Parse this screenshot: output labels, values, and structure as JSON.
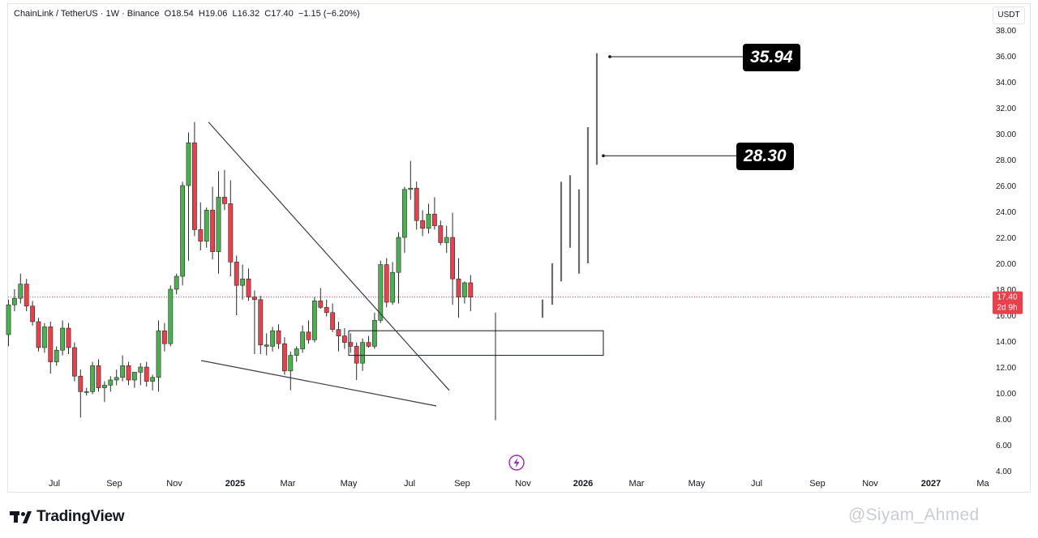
{
  "header": {
    "symbol": "ChainLink / TetherUS · 1W · Binance",
    "open_label": "O",
    "open": "18.54",
    "high_label": "H",
    "high": "19.06",
    "low_label": "L",
    "low": "16.32",
    "close_label": "C",
    "close": "17.40",
    "change": "−1.15 (−6.20%)"
  },
  "currency": "USDT",
  "price_tag": {
    "price": "17.40",
    "countdown": "2d 9h"
  },
  "targets": [
    {
      "value": "35.94"
    },
    {
      "value": "28.30"
    }
  ],
  "event_icon": "lightning-icon",
  "footer": {
    "brand": "TradingView",
    "watermark": "@Siyam_Ahmed"
  },
  "colors": {
    "up": "#4caf50",
    "down": "#e8414e",
    "price_line": "#e8414e",
    "text": "#131722",
    "pattern_lines": "#363a45"
  },
  "chart_data": {
    "type": "candlestick",
    "interval": "1W",
    "ylim": [
      4,
      38
    ],
    "y_ticks": [
      "4.00",
      "6.00",
      "8.00",
      "10.00",
      "12.00",
      "14.00",
      "16.00",
      "18.00",
      "20.00",
      "22.00",
      "24.00",
      "26.00",
      "28.00",
      "30.00",
      "32.00",
      "34.00",
      "36.00",
      "38.00"
    ],
    "x_ticks": [
      "Jul",
      "Sep",
      "Nov",
      "2025",
      "Mar",
      "May",
      "Jul",
      "Sep",
      "Nov",
      "2026",
      "Mar",
      "May",
      "Jul",
      "Sep",
      "Nov",
      "2027",
      "Ma"
    ],
    "x_ticks_bold": [
      "2025",
      "2026",
      "2027"
    ],
    "current_price": 17.4,
    "candles": [
      {
        "o": 14.5,
        "h": 17.2,
        "l": 13.6,
        "c": 16.8
      },
      {
        "o": 16.8,
        "h": 18.0,
        "l": 16.3,
        "c": 17.3
      },
      {
        "o": 17.3,
        "h": 19.2,
        "l": 16.9,
        "c": 18.4
      },
      {
        "o": 18.4,
        "h": 18.8,
        "l": 16.3,
        "c": 16.7
      },
      {
        "o": 16.7,
        "h": 17.1,
        "l": 15.2,
        "c": 15.5
      },
      {
        "o": 15.5,
        "h": 15.8,
        "l": 13.2,
        "c": 13.5
      },
      {
        "o": 13.5,
        "h": 15.4,
        "l": 13.1,
        "c": 15.1
      },
      {
        "o": 15.1,
        "h": 15.5,
        "l": 11.5,
        "c": 12.4
      },
      {
        "o": 12.4,
        "h": 13.6,
        "l": 12.1,
        "c": 13.3
      },
      {
        "o": 13.3,
        "h": 15.6,
        "l": 12.9,
        "c": 15.0
      },
      {
        "o": 15.0,
        "h": 15.4,
        "l": 13.0,
        "c": 13.5
      },
      {
        "o": 13.5,
        "h": 13.9,
        "l": 10.9,
        "c": 11.3
      },
      {
        "o": 11.3,
        "h": 11.8,
        "l": 8.1,
        "c": 10.1
      },
      {
        "o": 10.1,
        "h": 10.4,
        "l": 9.8,
        "c": 10.1
      },
      {
        "o": 10.1,
        "h": 12.4,
        "l": 9.9,
        "c": 12.1
      },
      {
        "o": 12.1,
        "h": 12.6,
        "l": 10.1,
        "c": 10.4
      },
      {
        "o": 10.4,
        "h": 10.9,
        "l": 9.3,
        "c": 10.6
      },
      {
        "o": 10.6,
        "h": 11.3,
        "l": 10.1,
        "c": 11.0
      },
      {
        "o": 11.0,
        "h": 11.8,
        "l": 10.6,
        "c": 11.2
      },
      {
        "o": 11.2,
        "h": 12.9,
        "l": 10.9,
        "c": 12.1
      },
      {
        "o": 12.1,
        "h": 12.4,
        "l": 10.6,
        "c": 11.0
      },
      {
        "o": 11.0,
        "h": 11.6,
        "l": 10.4,
        "c": 11.6
      },
      {
        "o": 11.6,
        "h": 12.3,
        "l": 10.6,
        "c": 12.0
      },
      {
        "o": 12.0,
        "h": 12.4,
        "l": 10.5,
        "c": 10.9
      },
      {
        "o": 10.9,
        "h": 11.4,
        "l": 10.2,
        "c": 11.2
      },
      {
        "o": 11.2,
        "h": 15.6,
        "l": 10.1,
        "c": 14.8
      },
      {
        "o": 14.8,
        "h": 15.4,
        "l": 13.2,
        "c": 13.8
      },
      {
        "o": 13.8,
        "h": 18.3,
        "l": 13.6,
        "c": 18.0
      },
      {
        "o": 18.0,
        "h": 19.2,
        "l": 17.6,
        "c": 19.0
      },
      {
        "o": 19.0,
        "h": 26.3,
        "l": 18.3,
        "c": 26.0
      },
      {
        "o": 26.0,
        "h": 30.1,
        "l": 20.2,
        "c": 29.3
      },
      {
        "o": 29.3,
        "h": 30.9,
        "l": 22.1,
        "c": 22.6
      },
      {
        "o": 22.6,
        "h": 24.7,
        "l": 21.0,
        "c": 21.7
      },
      {
        "o": 21.7,
        "h": 24.3,
        "l": 21.2,
        "c": 24.1
      },
      {
        "o": 24.1,
        "h": 25.9,
        "l": 20.3,
        "c": 20.9
      },
      {
        "o": 20.9,
        "h": 27.1,
        "l": 19.2,
        "c": 25.1
      },
      {
        "o": 25.1,
        "h": 27.2,
        "l": 24.1,
        "c": 24.6
      },
      {
        "o": 24.6,
        "h": 26.4,
        "l": 19.0,
        "c": 20.1
      },
      {
        "o": 20.1,
        "h": 20.6,
        "l": 16.0,
        "c": 18.3
      },
      {
        "o": 18.3,
        "h": 19.9,
        "l": 17.2,
        "c": 18.8
      },
      {
        "o": 18.8,
        "h": 19.6,
        "l": 17.1,
        "c": 17.4
      },
      {
        "o": 17.4,
        "h": 17.9,
        "l": 13.0,
        "c": 17.2
      },
      {
        "o": 17.2,
        "h": 17.5,
        "l": 13.0,
        "c": 13.7
      },
      {
        "o": 13.7,
        "h": 14.6,
        "l": 12.9,
        "c": 13.6
      },
      {
        "o": 13.6,
        "h": 15.1,
        "l": 13.2,
        "c": 14.8
      },
      {
        "o": 14.8,
        "h": 15.3,
        "l": 13.4,
        "c": 13.8
      },
      {
        "o": 13.8,
        "h": 14.3,
        "l": 11.4,
        "c": 11.7
      },
      {
        "o": 11.7,
        "h": 13.2,
        "l": 10.2,
        "c": 12.9
      },
      {
        "o": 12.9,
        "h": 13.6,
        "l": 12.4,
        "c": 13.4
      },
      {
        "o": 13.4,
        "h": 15.2,
        "l": 13.1,
        "c": 14.7
      },
      {
        "o": 14.7,
        "h": 15.6,
        "l": 13.8,
        "c": 14.1
      },
      {
        "o": 14.1,
        "h": 17.4,
        "l": 13.9,
        "c": 17.1
      },
      {
        "o": 17.1,
        "h": 18.1,
        "l": 16.5,
        "c": 16.6
      },
      {
        "o": 16.6,
        "h": 17.2,
        "l": 15.9,
        "c": 16.2
      },
      {
        "o": 16.2,
        "h": 16.9,
        "l": 14.7,
        "c": 14.9
      },
      {
        "o": 14.9,
        "h": 15.5,
        "l": 13.2,
        "c": 14.4
      },
      {
        "o": 14.4,
        "h": 15.0,
        "l": 13.4,
        "c": 13.9
      },
      {
        "o": 13.9,
        "h": 14.6,
        "l": 13.1,
        "c": 13.6
      },
      {
        "o": 13.6,
        "h": 13.9,
        "l": 11.0,
        "c": 12.3
      },
      {
        "o": 12.3,
        "h": 14.2,
        "l": 11.7,
        "c": 13.9
      },
      {
        "o": 13.9,
        "h": 14.4,
        "l": 13.5,
        "c": 13.6
      },
      {
        "o": 13.6,
        "h": 16.2,
        "l": 13.4,
        "c": 15.6
      },
      {
        "o": 15.6,
        "h": 20.2,
        "l": 15.4,
        "c": 19.9
      },
      {
        "o": 19.9,
        "h": 20.4,
        "l": 16.6,
        "c": 17.0
      },
      {
        "o": 17.0,
        "h": 20.1,
        "l": 16.8,
        "c": 19.3
      },
      {
        "o": 19.3,
        "h": 22.4,
        "l": 16.9,
        "c": 22.0
      },
      {
        "o": 22.0,
        "h": 25.9,
        "l": 20.8,
        "c": 25.7
      },
      {
        "o": 25.7,
        "h": 27.9,
        "l": 24.9,
        "c": 25.8
      },
      {
        "o": 25.8,
        "h": 26.3,
        "l": 22.6,
        "c": 23.3
      },
      {
        "o": 23.3,
        "h": 24.1,
        "l": 22.1,
        "c": 22.7
      },
      {
        "o": 22.7,
        "h": 24.6,
        "l": 22.3,
        "c": 23.8
      },
      {
        "o": 23.8,
        "h": 25.1,
        "l": 22.6,
        "c": 22.9
      },
      {
        "o": 22.9,
        "h": 23.3,
        "l": 21.4,
        "c": 21.6
      },
      {
        "o": 21.6,
        "h": 22.9,
        "l": 20.8,
        "c": 22.0
      },
      {
        "o": 22.0,
        "h": 23.9,
        "l": 16.8,
        "c": 18.8
      },
      {
        "o": 18.8,
        "h": 20.4,
        "l": 15.8,
        "c": 17.4
      },
      {
        "o": 17.4,
        "h": 18.6,
        "l": 16.9,
        "c": 18.5
      },
      {
        "o": 18.5,
        "h": 19.1,
        "l": 16.3,
        "c": 17.4
      }
    ],
    "projection_bars": [
      {
        "h": 17.2,
        "l": 15.8
      },
      {
        "h": 20.0,
        "l": 16.8
      },
      {
        "h": 26.3,
        "l": 18.6
      },
      {
        "h": 26.8,
        "l": 21.2
      },
      {
        "h": 25.7,
        "l": 19.2
      },
      {
        "h": 30.5,
        "l": 20.0
      },
      {
        "h": 36.2,
        "l": 27.6
      }
    ],
    "wick_spike": {
      "h": 16.2,
      "l": 7.9
    },
    "box": {
      "top": 14.8,
      "bottom": 12.9
    },
    "falling_wedge": {
      "upper": [
        [
          30.9,
          0
        ],
        [
          10.2,
          1
        ]
      ],
      "lower": [
        [
          12.5,
          0
        ],
        [
          9.0,
          1
        ]
      ]
    },
    "target_levels": [
      35.94,
      28.3
    ]
  }
}
